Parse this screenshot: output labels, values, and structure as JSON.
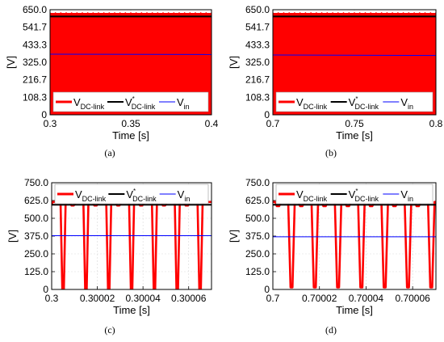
{
  "colors": {
    "dc_link": "#ff0000",
    "dc_link_ref": "#000000",
    "v_in": "#0000ff",
    "grid": "#d9d9d9",
    "axis": "#000000"
  },
  "legend": {
    "dc_link_main": "V",
    "dc_link_sub": "DC-link",
    "ref_main": "V",
    "ref_sup": "*",
    "ref_sub": "DC-link",
    "in_main": "V",
    "in_sub": "in"
  },
  "chart_data": [
    {
      "panel": "a",
      "caption": "(a)",
      "type": "line",
      "xlabel": "Time [s]",
      "ylabel": "[V]",
      "xlim": [
        0.3,
        0.4
      ],
      "ylim": [
        0,
        650
      ],
      "xticks": [
        "0.3",
        "0.35",
        "0.4"
      ],
      "yticks": [
        "0",
        "108.3",
        "216.7",
        "325.0",
        "433.3",
        "541.7",
        "650.0"
      ],
      "x_tick_values": [
        0.3,
        0.35,
        0.4
      ],
      "y_tick_values": [
        0,
        108.3,
        216.7,
        325.0,
        433.3,
        541.7,
        650.0
      ],
      "legend_position": "bottom",
      "series": [
        {
          "name": "V_DC-link",
          "style": "filled-band",
          "range": [
            0,
            630
          ]
        },
        {
          "name": "V*_DC-link",
          "x": [
            0.3,
            0.4
          ],
          "y": [
            608,
            608
          ]
        },
        {
          "name": "V_in",
          "x": [
            0.3,
            0.4
          ],
          "y": [
            375,
            373
          ]
        }
      ]
    },
    {
      "panel": "b",
      "caption": "(b)",
      "type": "line",
      "xlabel": "Time [s]",
      "ylabel": "[V]",
      "xlim": [
        0.7,
        0.8
      ],
      "ylim": [
        0,
        650
      ],
      "xticks": [
        "0.7",
        "0.75",
        "0.8"
      ],
      "yticks": [
        "0",
        "108.3",
        "216.7",
        "325.0",
        "433.3",
        "541.7",
        "650.0"
      ],
      "x_tick_values": [
        0.7,
        0.75,
        0.8
      ],
      "y_tick_values": [
        0,
        108.3,
        216.7,
        325.0,
        433.3,
        541.7,
        650.0
      ],
      "legend_position": "bottom",
      "series": [
        {
          "name": "V_DC-link",
          "style": "filled-band",
          "range": [
            0,
            630
          ]
        },
        {
          "name": "V*_DC-link",
          "x": [
            0.7,
            0.8
          ],
          "y": [
            608,
            608
          ]
        },
        {
          "name": "V_in",
          "x": [
            0.7,
            0.8
          ],
          "y": [
            370,
            367
          ]
        }
      ]
    },
    {
      "panel": "c",
      "caption": "(c)",
      "type": "line",
      "xlabel": "Time [s]",
      "ylabel": "[V]",
      "xlim": [
        0.3,
        0.30007
      ],
      "ylim": [
        0,
        750
      ],
      "xticks": [
        "0.3",
        "0.30002",
        "0.30004",
        "0.30006"
      ],
      "yticks": [
        "0",
        "125.0",
        "250.0",
        "375.0",
        "500.0",
        "625.0",
        "750.0"
      ],
      "x_tick_values": [
        0.3,
        0.30002,
        0.30004,
        0.30006
      ],
      "y_tick_values": [
        0,
        125,
        250,
        375,
        500,
        625,
        750
      ],
      "legend_position": "top",
      "series": [
        {
          "name": "V_DC-link",
          "style": "pulsed",
          "high": 615,
          "low": 590,
          "dip_centers": [
            0.300005,
            0.300015,
            0.300025,
            0.300035,
            0.300045,
            0.300055,
            0.300065
          ],
          "dip_width": 2.2e-06,
          "dip_min": 0
        },
        {
          "name": "V*_DC-link",
          "x": [
            0.3,
            0.30007
          ],
          "y": [
            595,
            595
          ]
        },
        {
          "name": "V_in",
          "x": [
            0.3,
            0.30007
          ],
          "y": [
            378,
            378
          ]
        }
      ]
    },
    {
      "panel": "d",
      "caption": "(d)",
      "type": "line",
      "xlabel": "Time [s]",
      "ylabel": "[V]",
      "xlim": [
        0.7,
        0.70007
      ],
      "ylim": [
        0,
        750
      ],
      "xticks": [
        "0.7",
        "0.70002",
        "0.70004",
        "0.70006"
      ],
      "yticks": [
        "0",
        "125.0",
        "250.0",
        "375.0",
        "500.0",
        "625.0",
        "750.0"
      ],
      "x_tick_values": [
        0.7,
        0.70002,
        0.70004,
        0.70006
      ],
      "y_tick_values": [
        0,
        125,
        250,
        375,
        500,
        625,
        750
      ],
      "legend_position": "top",
      "series": [
        {
          "name": "V_DC-link",
          "style": "pulsed",
          "high": 615,
          "low": 585,
          "dip_centers": [
            0.700008,
            0.700018,
            0.700028,
            0.700038,
            0.700048,
            0.700058,
            0.700068
          ],
          "dip_width": 2.8e-06,
          "dip_min": 15
        },
        {
          "name": "V*_DC-link",
          "x": [
            0.7,
            0.70007
          ],
          "y": [
            595,
            595
          ]
        },
        {
          "name": "V_in",
          "x": [
            0.7,
            0.70007
          ],
          "y": [
            370,
            370
          ]
        }
      ]
    }
  ]
}
